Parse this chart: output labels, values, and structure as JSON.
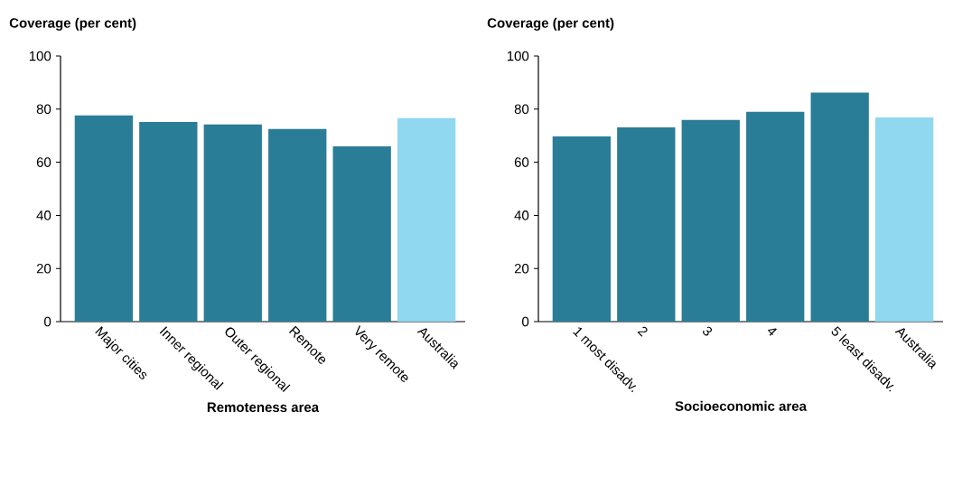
{
  "chart_data": [
    {
      "type": "bar",
      "ylabel": "Coverage (per cent)",
      "xlabel": "Remoteness area",
      "categories": [
        "Major cities",
        "Inner regional",
        "Outer regional",
        "Remote",
        "Very remote",
        "Australia"
      ],
      "values": [
        77.6,
        75.2,
        74.2,
        72.5,
        66.0,
        76.6
      ],
      "colors": [
        "#2a7d97",
        "#2a7d97",
        "#2a7d97",
        "#2a7d97",
        "#2a7d97",
        "#8fd8f0"
      ],
      "ylim": [
        0,
        100
      ],
      "yticks": [
        0,
        20,
        40,
        60,
        80,
        100
      ]
    },
    {
      "type": "bar",
      "ylabel": "Coverage (per cent)",
      "xlabel": "Socioeconomic area",
      "categories": [
        "1 most disadv.",
        "2",
        "3",
        "4",
        "5 least disadv.",
        "Australia"
      ],
      "values": [
        69.7,
        73.1,
        75.9,
        79.0,
        86.2,
        76.9
      ],
      "colors": [
        "#2a7d97",
        "#2a7d97",
        "#2a7d97",
        "#2a7d97",
        "#2a7d97",
        "#8fd8f0"
      ],
      "ylim": [
        0,
        100
      ],
      "yticks": [
        0,
        20,
        40,
        60,
        80,
        100
      ]
    }
  ]
}
